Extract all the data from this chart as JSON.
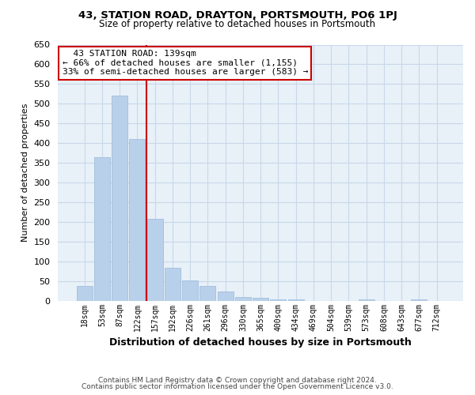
{
  "title": "43, STATION ROAD, DRAYTON, PORTSMOUTH, PO6 1PJ",
  "subtitle": "Size of property relative to detached houses in Portsmouth",
  "xlabel": "Distribution of detached houses by size in Portsmouth",
  "ylabel": "Number of detached properties",
  "bar_labels": [
    "18sqm",
    "53sqm",
    "87sqm",
    "122sqm",
    "157sqm",
    "192sqm",
    "226sqm",
    "261sqm",
    "296sqm",
    "330sqm",
    "365sqm",
    "400sqm",
    "434sqm",
    "469sqm",
    "504sqm",
    "539sqm",
    "573sqm",
    "608sqm",
    "643sqm",
    "677sqm",
    "712sqm"
  ],
  "bar_values": [
    38,
    365,
    520,
    410,
    207,
    83,
    52,
    37,
    24,
    10,
    8,
    3,
    3,
    0,
    0,
    0,
    3,
    0,
    0,
    3,
    0
  ],
  "bar_color": "#b8d0ea",
  "bar_edge_color": "#9ab8d8",
  "vline_color": "#cc0000",
  "ylim": [
    0,
    650
  ],
  "yticks": [
    0,
    50,
    100,
    150,
    200,
    250,
    300,
    350,
    400,
    450,
    500,
    550,
    600,
    650
  ],
  "annotation_title": "43 STATION ROAD: 139sqm",
  "annotation_line1": "← 66% of detached houses are smaller (1,155)",
  "annotation_line2": "33% of semi-detached houses are larger (583) →",
  "annotation_box_color": "#ffffff",
  "annotation_box_edge": "#cc0000",
  "footer_line1": "Contains HM Land Registry data © Crown copyright and database right 2024.",
  "footer_line2": "Contains public sector information licensed under the Open Government Licence v3.0.",
  "background_color": "#ffffff",
  "grid_color": "#c8d8e8",
  "plot_bg_color": "#e8f0f8"
}
